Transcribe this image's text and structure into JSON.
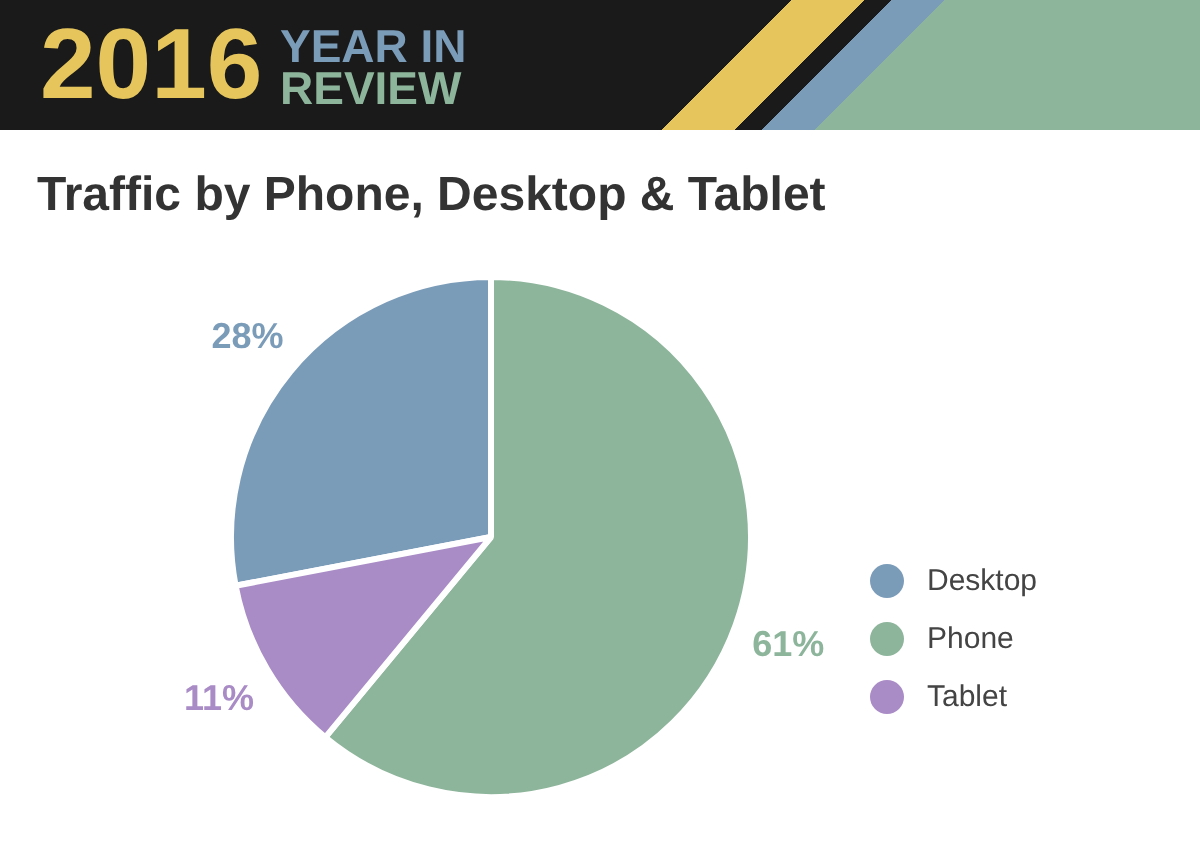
{
  "chart_data": {
    "type": "pie",
    "title": "Traffic by Phone, Desktop & Tablet",
    "annotations": [
      "2016",
      "YEAR IN",
      "REVIEW"
    ],
    "categories": [
      "Desktop",
      "Phone",
      "Tablet"
    ],
    "values": [
      28,
      61,
      11
    ],
    "colors": [
      "#7b9cb9",
      "#8db59b",
      "#a98bc6"
    ],
    "value_labels": [
      "28%",
      "61%",
      "11%"
    ],
    "legend": "right"
  }
}
